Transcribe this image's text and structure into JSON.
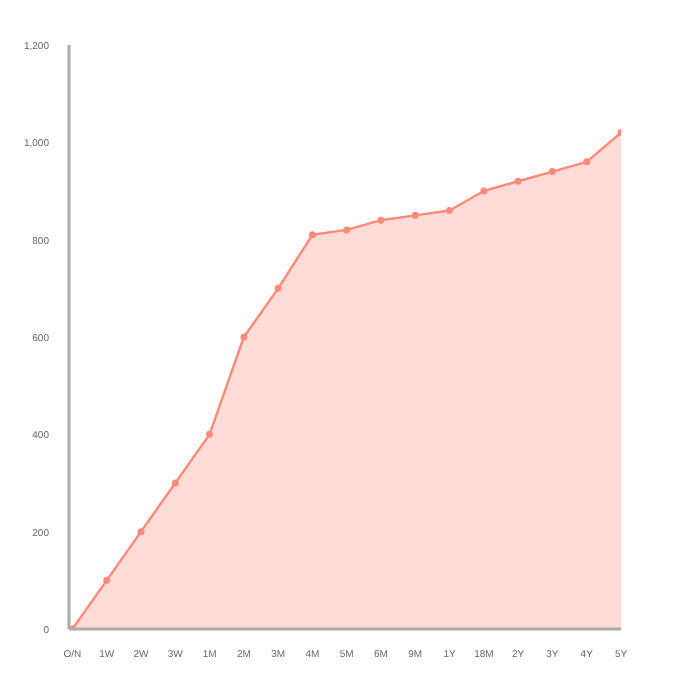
{
  "chart_data": {
    "type": "area",
    "categories": [
      "O/N",
      "1W",
      "2W",
      "3W",
      "1M",
      "2M",
      "3M",
      "4M",
      "5M",
      "6M",
      "9M",
      "1Y",
      "18M",
      "2Y",
      "3Y",
      "4Y",
      "5Y"
    ],
    "ylim": [
      0,
      1200
    ],
    "yticks": [
      {
        "value": 0,
        "label": "0"
      },
      {
        "value": 200,
        "label": "200"
      },
      {
        "value": 400,
        "label": "400"
      },
      {
        "value": 600,
        "label": "600"
      },
      {
        "value": 800,
        "label": "800"
      },
      {
        "value": 1000,
        "label": "1,000"
      },
      {
        "value": 1200,
        "label": "1,200"
      }
    ],
    "series": [
      {
        "color": "#ff8a7a",
        "values": [
          0,
          100,
          200,
          300,
          400,
          600,
          700,
          810,
          820,
          840,
          850,
          860,
          900,
          920,
          940,
          960,
          1020
        ]
      }
    ],
    "marker": "circle",
    "grid": false
  }
}
